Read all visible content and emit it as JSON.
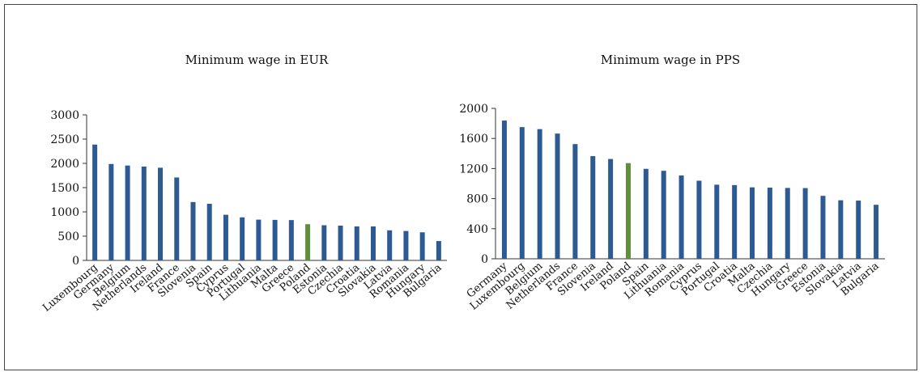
{
  "chart_data": [
    {
      "type": "bar",
      "title": "Minimum wage in EUR",
      "xlabel": "",
      "ylabel": "",
      "ylim": [
        0,
        3000
      ],
      "yticks": [
        0,
        500,
        1000,
        1500,
        2000,
        2500,
        3000
      ],
      "grid": false,
      "categories": [
        "Luxembourg",
        "Germany",
        "Belgium",
        "Netherlands",
        "Ireland",
        "France",
        "Slovenia",
        "Spain",
        "Cyprus",
        "Portugal",
        "Lithuania",
        "Malta",
        "Greece",
        "Poland",
        "Estonia",
        "Czechia",
        "Croatia",
        "Slovakia",
        "Latvia",
        "Romania",
        "Hungary",
        "Bulgaria"
      ],
      "values": [
        2387,
        1987,
        1955,
        1934,
        1910,
        1709,
        1203,
        1167,
        940,
        887,
        840,
        835,
        831,
        746,
        725,
        717,
        700,
        700,
        620,
        606,
        579,
        399
      ],
      "bar_color": "#2E5A93",
      "highlight_category": "Poland",
      "highlight_color": "#5E8F3A"
    },
    {
      "type": "bar",
      "title": "Minimum wage in PPS",
      "xlabel": "",
      "ylabel": "",
      "ylim": [
        0,
        2000
      ],
      "yticks": [
        0,
        400,
        800,
        1200,
        1600,
        2000
      ],
      "grid": false,
      "categories": [
        "Germany",
        "Luxembourg",
        "Belgium",
        "Netherlands",
        "France",
        "Slovenia",
        "Ireland",
        "Poland",
        "Spain",
        "Lithuania",
        "Romania",
        "Cyprus",
        "Portugal",
        "Croatia",
        "Malta",
        "Czechia",
        "Hungary",
        "Greece",
        "Estonia",
        "Slovakia",
        "Latvia",
        "Bulgaria"
      ],
      "values": [
        1838,
        1751,
        1724,
        1665,
        1525,
        1365,
        1327,
        1272,
        1196,
        1170,
        1108,
        1038,
        985,
        980,
        950,
        946,
        942,
        940,
        837,
        778,
        774,
        718
      ],
      "bar_color": "#2E5A93",
      "highlight_category": "Poland",
      "highlight_color": "#5E8F3A"
    }
  ]
}
